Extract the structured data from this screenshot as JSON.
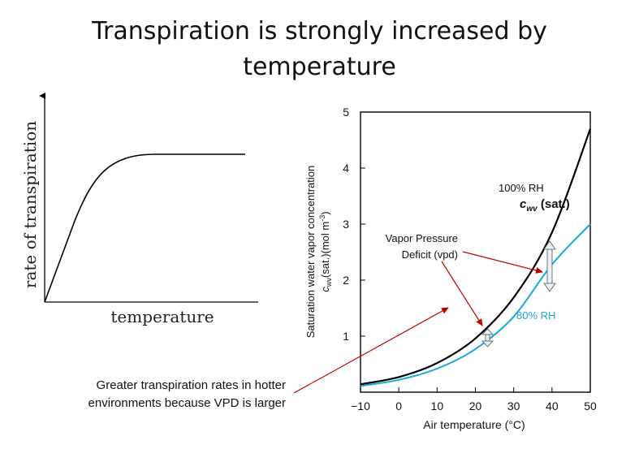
{
  "title": {
    "line1": "Transpiration is strongly increased by",
    "line2": "temperature"
  },
  "left_chart": {
    "ylabel": "rate of transpiration",
    "xlabel": "temperature"
  },
  "right_chart": {
    "ylabel_line1": "Saturation water vapor concentration",
    "ylabel_line2": "c",
    "ylabel_sub": "wv",
    "ylabel_rest": "(sat.)(mol m",
    "ylabel_exp": "-3",
    "ylabel_close": ")",
    "xlabel": "Air temperature (°C)",
    "x_ticks": [
      "−10",
      "0",
      "10",
      "20",
      "30",
      "40",
      "50"
    ],
    "y_ticks": [
      "1",
      "2",
      "3",
      "4",
      "5"
    ],
    "label_100rh": "100% RH",
    "label_cwv_main": "c",
    "label_cwv_sub": "wv",
    "label_cwv_rest": " (sat.)",
    "label_80rh": "80% RH",
    "vpd_line1": "Vapor Pressure",
    "vpd_line2": "Deficit (vpd)"
  },
  "caption": {
    "line1": "Greater transpiration rates in hotter",
    "line2": "environments because VPD is larger"
  },
  "colors": {
    "curve_100": "#000000",
    "curve_80": "#1ba6dc",
    "arrow": "#c00000"
  },
  "chart_data": [
    {
      "type": "line",
      "title": "",
      "xlabel": "temperature",
      "ylabel": "rate of transpiration",
      "note": "qualitative curve, no numeric axes",
      "series": [
        {
          "name": "",
          "x": [
            0,
            0.15,
            0.28,
            0.4,
            0.55,
            1.0
          ],
          "values": [
            0,
            0.55,
            0.85,
            0.98,
            1.0,
            1.0
          ]
        }
      ]
    },
    {
      "type": "line",
      "title": "",
      "xlabel": "Air temperature (°C)",
      "ylabel": "Saturation water vapor concentration cwv(sat.)(mol m-3)",
      "xlim": [
        -10,
        50
      ],
      "ylim": [
        0,
        5
      ],
      "x": [
        -10,
        0,
        10,
        20,
        30,
        40,
        50
      ],
      "series": [
        {
          "name": "100% RH",
          "values": [
            0.14,
            0.27,
            0.52,
            0.96,
            1.69,
            2.85,
            4.7
          ]
        },
        {
          "name": "80% RH",
          "values": [
            0.11,
            0.22,
            0.42,
            0.77,
            1.35,
            2.28,
            3.0
          ]
        }
      ]
    }
  ]
}
